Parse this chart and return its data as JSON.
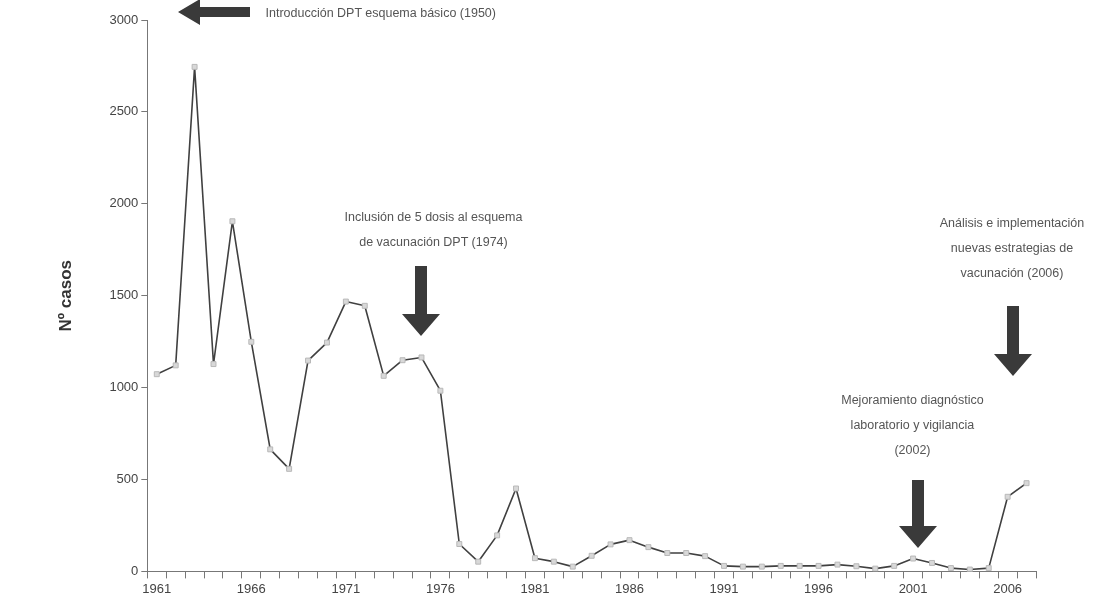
{
  "chart_data": {
    "type": "line",
    "ylabel": "Nº casos",
    "categories": [
      "1961",
      null,
      null,
      null,
      null,
      "1966",
      null,
      null,
      null,
      null,
      "1971",
      null,
      null,
      null,
      null,
      "1976",
      null,
      null,
      null,
      null,
      "1981",
      null,
      null,
      null,
      null,
      "1986",
      null,
      null,
      null,
      null,
      "1991",
      null,
      null,
      null,
      null,
      "1996",
      null,
      null,
      null,
      null,
      "2001",
      null,
      null,
      null,
      null,
      "2006",
      null
    ],
    "series": [
      {
        "color": "#404040",
        "values": [
          1073,
          1121,
          2745,
          1128,
          1905,
          1249,
          664,
          558,
          1147,
          1245,
          1468,
          1445,
          1064,
          1149,
          1164,
          983,
          149,
          53,
          196,
          451,
          72,
          53,
          26,
          85,
          147,
          170,
          132,
          100,
          100,
          83,
          30,
          26,
          26,
          30,
          30,
          30,
          37,
          28,
          15,
          30,
          70,
          46,
          18,
          10,
          18,
          406,
          480
        ]
      }
    ],
    "ylim": [
      0,
      3000
    ],
    "yticks": [
      0,
      500,
      1000,
      1500,
      2000,
      2500,
      3000
    ],
    "grid": false,
    "legend": false,
    "marker": "square",
    "line_style": "solid",
    "annotations": [
      "Introducción DPT esquema básico (1950)",
      "Inclusión de 5 dosis al esquema\nde vacunación DPT (1974)",
      "Mejoramiento diagnóstico\nlaboratorio y vigilancia\n(2002)",
      "Análisis e implementación\nnuevas estrategias de\nvacunación (2006)"
    ]
  }
}
